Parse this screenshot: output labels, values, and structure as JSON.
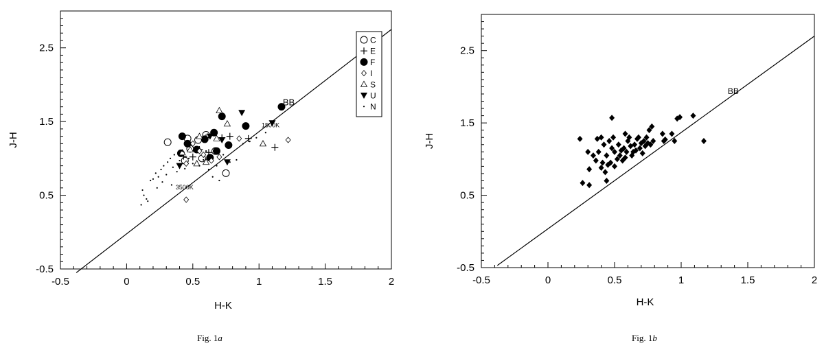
{
  "chart_data": [
    {
      "type": "scatter",
      "caption": "Fig. 1a",
      "caption_prefix": "Fig. 1",
      "caption_suffix": "a",
      "xlabel": "H-K",
      "ylabel": "J-H",
      "xlim": [
        -0.5,
        2
      ],
      "ylim": [
        -0.5,
        3
      ],
      "xticks": [
        "-0.5",
        "0",
        "0.5",
        "1",
        "1.5",
        "2"
      ],
      "yticks": [
        "-0.5",
        "0.5",
        "1.5",
        "2.5"
      ],
      "xtick_values": [
        -0.5,
        0,
        0.5,
        1,
        1.5,
        2
      ],
      "ytick_values": [
        -0.5,
        0.5,
        1.5,
        2.5
      ],
      "grid": false,
      "legend_position": "top-right",
      "line": {
        "label": "BB",
        "x": [
          -0.38,
          2.0
        ],
        "y": [
          -0.55,
          2.75
        ]
      },
      "annotations": [
        {
          "text": "BB",
          "x": 1.18,
          "y": 1.72
        },
        {
          "text": "1500K",
          "x": 1.02,
          "y": 1.42
        },
        {
          "text": "3500K",
          "x": 0.37,
          "y": 0.58
        }
      ],
      "series": [
        {
          "name": "C",
          "marker": "open-circle",
          "points": [
            [
              0.31,
              1.22
            ],
            [
              0.46,
              1.27
            ],
            [
              0.54,
              1.25
            ],
            [
              0.6,
              1.32
            ],
            [
              0.44,
              0.97
            ],
            [
              0.67,
              1.1
            ],
            [
              0.57,
              1.0
            ],
            [
              0.75,
              0.8
            ],
            [
              0.48,
              1.13
            ]
          ]
        },
        {
          "name": "E",
          "marker": "plus",
          "points": [
            [
              0.43,
              1.03
            ],
            [
              0.5,
              1.02
            ],
            [
              0.55,
              1.12
            ],
            [
              0.6,
              1.28
            ],
            [
              0.72,
              1.28
            ],
            [
              0.78,
              1.3
            ],
            [
              0.92,
              1.27
            ],
            [
              1.12,
              1.15
            ],
            [
              0.62,
              1.08
            ]
          ]
        },
        {
          "name": "F",
          "marker": "filled-circle",
          "points": [
            [
              0.42,
              1.3
            ],
            [
              0.41,
              1.07
            ],
            [
              0.53,
              1.12
            ],
            [
              0.59,
              1.26
            ],
            [
              0.66,
              1.35
            ],
            [
              0.72,
              1.57
            ],
            [
              0.68,
              1.1
            ],
            [
              0.77,
              1.18
            ],
            [
              0.9,
              1.44
            ],
            [
              1.17,
              1.7
            ],
            [
              0.46,
              1.2
            ],
            [
              0.63,
              1.01
            ]
          ]
        },
        {
          "name": "I",
          "marker": "small-diamond",
          "points": [
            [
              0.45,
              0.93
            ],
            [
              0.5,
              1.2
            ],
            [
              0.58,
              1.05
            ],
            [
              0.64,
              0.97
            ],
            [
              0.7,
              1.02
            ],
            [
              0.85,
              1.27
            ],
            [
              1.22,
              1.25
            ],
            [
              0.45,
              0.44
            ],
            [
              0.55,
              1.1
            ]
          ]
        },
        {
          "name": "S",
          "marker": "open-triangle",
          "points": [
            [
              0.42,
              1.08
            ],
            [
              0.48,
              1.12
            ],
            [
              0.55,
              1.3
            ],
            [
              0.6,
              0.95
            ],
            [
              0.7,
              1.65
            ],
            [
              0.76,
              1.47
            ],
            [
              1.03,
              1.2
            ],
            [
              0.68,
              1.27
            ],
            [
              0.53,
              0.93
            ]
          ]
        },
        {
          "name": "U",
          "marker": "filled-down-triangle",
          "points": [
            [
              0.4,
              0.9
            ],
            [
              0.63,
              1.3
            ],
            [
              0.87,
              1.62
            ],
            [
              0.76,
              0.95
            ],
            [
              1.1,
              1.48
            ],
            [
              0.72,
              1.25
            ]
          ]
        },
        {
          "name": "N",
          "marker": "dot",
          "points": [
            [
              0.11,
              0.37
            ],
            [
              0.13,
              0.5
            ],
            [
              0.12,
              0.57
            ],
            [
              0.15,
              0.45
            ],
            [
              0.18,
              0.7
            ],
            [
              0.2,
              0.72
            ],
            [
              0.22,
              0.8
            ],
            [
              0.24,
              0.75
            ],
            [
              0.23,
              0.6
            ],
            [
              0.26,
              0.85
            ],
            [
              0.28,
              0.9
            ],
            [
              0.3,
              0.78
            ],
            [
              0.31,
              0.95
            ],
            [
              0.33,
              1.0
            ],
            [
              0.35,
              0.88
            ],
            [
              0.36,
              1.05
            ],
            [
              0.38,
              0.82
            ],
            [
              0.4,
              0.97
            ],
            [
              0.42,
              1.1
            ],
            [
              0.44,
              0.86
            ],
            [
              0.47,
              1.0
            ],
            [
              0.5,
              0.93
            ],
            [
              0.52,
              1.15
            ],
            [
              0.55,
              0.9
            ],
            [
              0.58,
              0.98
            ],
            [
              0.6,
              1.1
            ],
            [
              0.62,
              0.85
            ],
            [
              0.65,
              0.75
            ],
            [
              0.68,
              0.9
            ],
            [
              0.7,
              0.7
            ],
            [
              0.73,
              1.05
            ],
            [
              0.78,
              0.95
            ],
            [
              0.83,
              0.98
            ],
            [
              0.88,
              1.2
            ],
            [
              0.93,
              1.23
            ],
            [
              0.98,
              1.28
            ],
            [
              1.05,
              1.35
            ],
            [
              0.34,
              0.64
            ],
            [
              0.27,
              0.68
            ],
            [
              0.16,
              0.42
            ]
          ]
        }
      ]
    },
    {
      "type": "scatter",
      "caption": "Fig. 1b",
      "caption_prefix": "Fig. 1",
      "caption_suffix": "b",
      "xlabel": "H-K",
      "ylabel": "J-H",
      "xlim": [
        -0.5,
        2
      ],
      "ylim": [
        -0.5,
        3
      ],
      "xticks": [
        "-0.5",
        "0",
        "0.5",
        "1",
        "1.5",
        "2"
      ],
      "yticks": [
        "-0.5",
        "0.5",
        "1.5",
        "2.5"
      ],
      "xtick_values": [
        -0.5,
        0,
        0.5,
        1,
        1.5,
        2
      ],
      "ytick_values": [
        -0.5,
        0.5,
        1.5,
        2.5
      ],
      "grid": false,
      "line": {
        "label": "BB",
        "x": [
          -0.38,
          2.0
        ],
        "y": [
          -0.47,
          2.7
        ]
      },
      "annotations": [
        {
          "text": "BB",
          "x": 1.35,
          "y": 1.9
        }
      ],
      "series": [
        {
          "marker": "filled-diamond",
          "points": [
            [
              0.24,
              1.28
            ],
            [
              0.26,
              0.67
            ],
            [
              0.3,
              1.1
            ],
            [
              0.31,
              0.86
            ],
            [
              0.31,
              0.64
            ],
            [
              0.34,
              1.05
            ],
            [
              0.36,
              0.98
            ],
            [
              0.37,
              1.28
            ],
            [
              0.38,
              1.1
            ],
            [
              0.4,
              0.88
            ],
            [
              0.4,
              1.3
            ],
            [
              0.41,
              0.95
            ],
            [
              0.42,
              1.2
            ],
            [
              0.43,
              0.82
            ],
            [
              0.44,
              0.7
            ],
            [
              0.44,
              1.05
            ],
            [
              0.45,
              0.92
            ],
            [
              0.46,
              1.25
            ],
            [
              0.47,
              0.95
            ],
            [
              0.48,
              1.57
            ],
            [
              0.48,
              1.15
            ],
            [
              0.49,
              1.3
            ],
            [
              0.5,
              1.1
            ],
            [
              0.5,
              0.9
            ],
            [
              0.52,
              1.0
            ],
            [
              0.53,
              1.2
            ],
            [
              0.54,
              1.05
            ],
            [
              0.55,
              1.12
            ],
            [
              0.56,
              0.98
            ],
            [
              0.57,
              1.15
            ],
            [
              0.58,
              1.02
            ],
            [
              0.59,
              1.1
            ],
            [
              0.6,
              1.25
            ],
            [
              0.61,
              1.3
            ],
            [
              0.62,
              1.18
            ],
            [
              0.63,
              1.05
            ],
            [
              0.64,
              1.1
            ],
            [
              0.65,
              1.2
            ],
            [
              0.66,
              1.12
            ],
            [
              0.67,
              1.28
            ],
            [
              0.68,
              1.3
            ],
            [
              0.69,
              1.15
            ],
            [
              0.7,
              1.22
            ],
            [
              0.71,
              1.08
            ],
            [
              0.72,
              1.25
            ],
            [
              0.73,
              1.18
            ],
            [
              0.74,
              1.3
            ],
            [
              0.75,
              1.22
            ],
            [
              0.76,
              1.4
            ],
            [
              0.77,
              1.2
            ],
            [
              0.78,
              1.45
            ],
            [
              0.79,
              1.25
            ],
            [
              0.86,
              1.35
            ],
            [
              0.87,
              1.25
            ],
            [
              0.88,
              1.27
            ],
            [
              0.93,
              1.35
            ],
            [
              0.95,
              1.25
            ],
            [
              0.97,
              1.56
            ],
            [
              0.99,
              1.58
            ],
            [
              1.09,
              1.6
            ],
            [
              1.17,
              1.25
            ],
            [
              0.58,
              1.35
            ]
          ]
        }
      ]
    }
  ]
}
